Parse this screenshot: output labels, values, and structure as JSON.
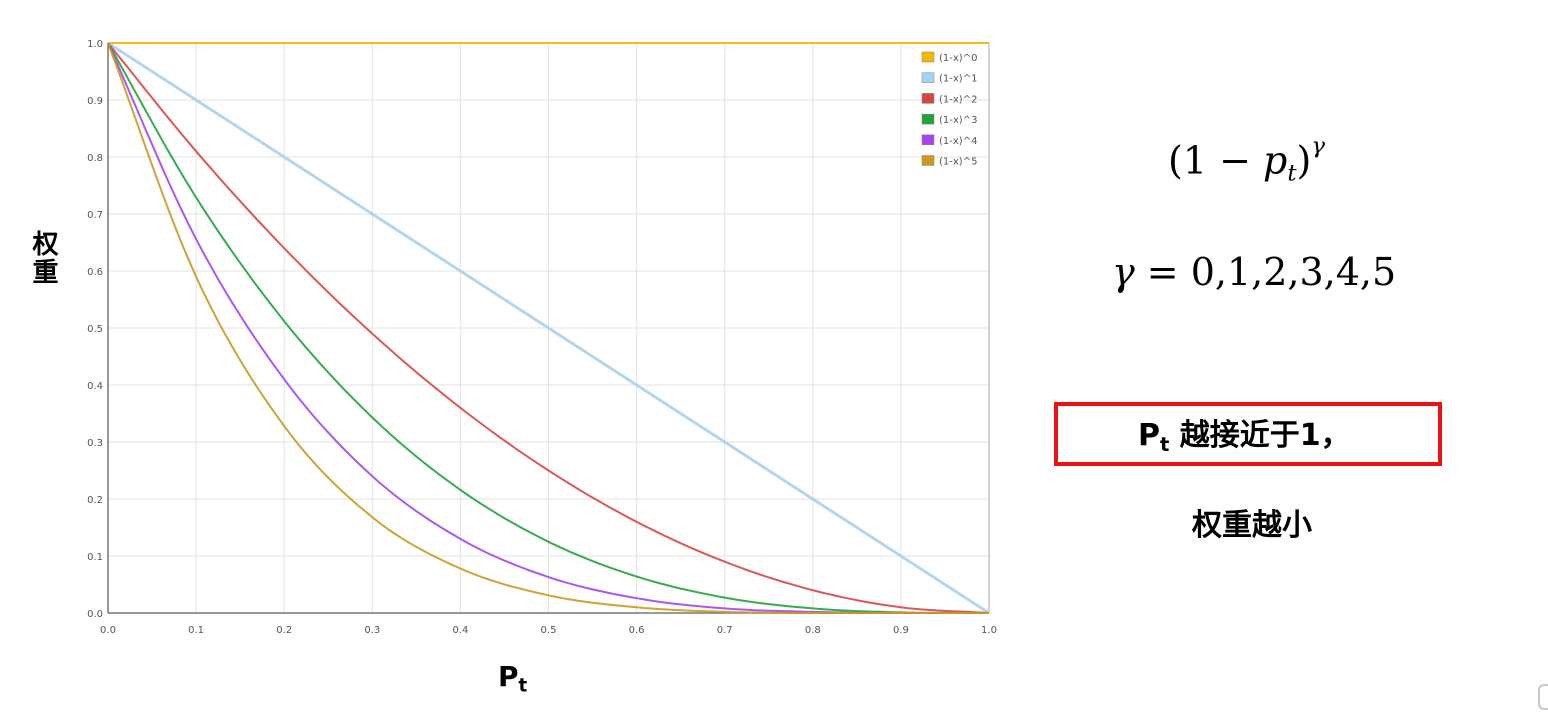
{
  "chart_data": {
    "type": "line",
    "xlabel": "P",
    "xlabel_sub": "t",
    "ylabel": "权重",
    "xlim": [
      0.0,
      1.0
    ],
    "ylim": [
      0.0,
      1.0
    ],
    "x_ticks": [
      "0.0",
      "0.1",
      "0.2",
      "0.3",
      "0.4",
      "0.5",
      "0.6",
      "0.7",
      "0.8",
      "0.9",
      "1.0"
    ],
    "y_ticks": [
      "0.0",
      "0.1",
      "0.2",
      "0.3",
      "0.4",
      "0.5",
      "0.6",
      "0.7",
      "0.8",
      "0.9",
      "1.0"
    ],
    "grid": true,
    "legend_position": "top-right",
    "x": [
      0.0,
      0.1,
      0.2,
      0.3,
      0.4,
      0.5,
      0.6,
      0.7,
      0.8,
      0.9,
      1.0
    ],
    "series": [
      {
        "name": "(1-x)^0",
        "color": "#f5b800",
        "values": [
          1,
          1,
          1,
          1,
          1,
          1,
          1,
          1,
          1,
          1,
          1
        ]
      },
      {
        "name": "(1-x)^1",
        "color": "#a9d2f2",
        "values": [
          1.0,
          0.9,
          0.8,
          0.7,
          0.6,
          0.5,
          0.4,
          0.3,
          0.2,
          0.1,
          0.0
        ]
      },
      {
        "name": "(1-x)^2",
        "color": "#d94545",
        "values": [
          1.0,
          0.81,
          0.64,
          0.49,
          0.36,
          0.25,
          0.16,
          0.09,
          0.04,
          0.01,
          0.0
        ]
      },
      {
        "name": "(1-x)^3",
        "color": "#1fa33a",
        "values": [
          1.0,
          0.729,
          0.512,
          0.343,
          0.216,
          0.125,
          0.064,
          0.027,
          0.008,
          0.001,
          0.0
        ]
      },
      {
        "name": "(1-x)^4",
        "color": "#a544f0",
        "values": [
          1.0,
          0.656,
          0.41,
          0.24,
          0.13,
          0.063,
          0.026,
          0.008,
          0.002,
          0.0,
          0.0
        ]
      },
      {
        "name": "(1-x)^5",
        "color": "#c99a1e",
        "values": [
          1.0,
          0.59,
          0.328,
          0.168,
          0.078,
          0.031,
          0.01,
          0.002,
          0.0,
          0.0,
          0.0
        ]
      }
    ]
  },
  "formula": {
    "line1": {
      "open": "(1 − ",
      "p": "p",
      "sub": "t",
      "close": ")",
      "sup": "γ"
    },
    "line2": {
      "gamma": "γ",
      "rest": " = 0,1,2,3,4,5"
    }
  },
  "note": {
    "line1_p": "P",
    "line1_sub": "t",
    "line1_rest": " 越接近于1，",
    "line2": "权重越小",
    "border_color": "#f01010"
  }
}
